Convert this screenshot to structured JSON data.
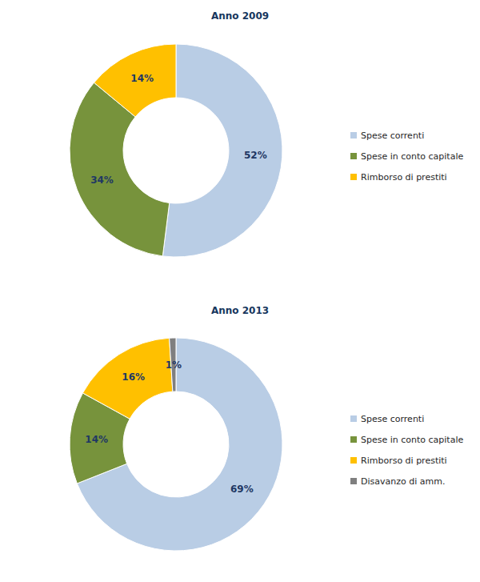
{
  "chart_data": [
    {
      "type": "pie",
      "title": "Anno 2009",
      "categories": [
        "Spese correnti",
        "Spese in conto capitale",
        "Rimborso di prestiti"
      ],
      "values": [
        52,
        34,
        14
      ],
      "value_labels": [
        "52%",
        "34%",
        "14%"
      ],
      "colors": [
        "#b9cde5",
        "#77933c",
        "#ffc000"
      ],
      "data_labels": true,
      "legend": "right"
    },
    {
      "type": "pie",
      "title": "Anno 2013",
      "categories": [
        "Spese correnti",
        "Spese in conto capitale",
        "Rimborso di prestiti",
        "Disavanzo di amm."
      ],
      "values": [
        69,
        14,
        16,
        1
      ],
      "value_labels": [
        "69%",
        "14%",
        "16%",
        "1%"
      ],
      "colors": [
        "#b9cde5",
        "#77933c",
        "#ffc000",
        "#7f7f7f"
      ],
      "data_labels": true,
      "legend": "right"
    }
  ]
}
